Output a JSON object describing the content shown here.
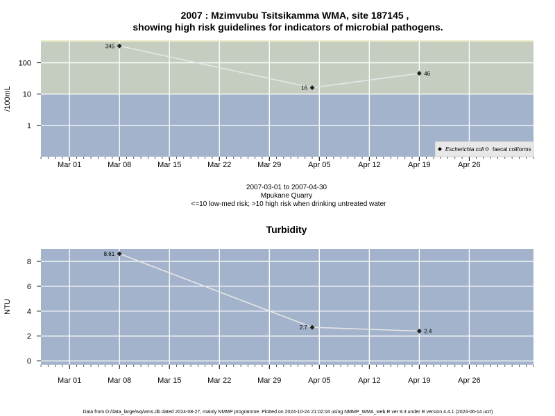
{
  "page": {
    "title_line1": "2007 : Mzimvubu Tsitsikamma WMA, site 187145 ,",
    "title_line2": "showing high risk guidelines for indicators of microbial pathogens.",
    "date_range": "2007-03-01 to 2007-04-30",
    "site_name": "Mpukane Quarry",
    "risk_note": "<=10 low-med risk; >10 high risk when drinking untreated water",
    "footer": "Data from D:/data_large/wq/wms.db dated 2024-08-27, mainly NMMP programme. Plotted on 2024-10-24 21:02:04 using NMMP_WMA_web.R ver 9.3 under R version 4.4.1 (2024-06-14 ucrt)"
  },
  "colors": {
    "high_risk_band": "#c5cdc0",
    "low_risk_band": "#a3b3cc",
    "top_strip": "#eeeec8",
    "grid": "#ffffff",
    "series_line": "#e6e6e6",
    "marker": "#222222",
    "legend_bg": "#e8e8e8"
  },
  "chart_data": [
    {
      "type": "line",
      "title": "",
      "ylabel": "/100mL",
      "yscale": "log",
      "ylim": [
        0.1,
        500
      ],
      "xlim": [
        "2007-02-25",
        "2007-05-05"
      ],
      "xticks": [
        {
          "date": "2007-03-01",
          "label": "Mar 01"
        },
        {
          "date": "2007-03-08",
          "label": "Mar 08"
        },
        {
          "date": "2007-03-15",
          "label": "Mar 15"
        },
        {
          "date": "2007-03-22",
          "label": "Mar 22"
        },
        {
          "date": "2007-03-29",
          "label": "Mar 29"
        },
        {
          "date": "2007-04-05",
          "label": "Apr 05"
        },
        {
          "date": "2007-04-12",
          "label": "Apr 12"
        },
        {
          "date": "2007-04-19",
          "label": "Apr 19"
        },
        {
          "date": "2007-04-26",
          "label": "Apr 26"
        }
      ],
      "yticks": [
        {
          "value": 1,
          "label": "1"
        },
        {
          "value": 10,
          "label": "10"
        },
        {
          "value": 100,
          "label": "100"
        }
      ],
      "threshold": 10,
      "grid": true,
      "legend": {
        "placement": "bottom-right",
        "entries": [
          {
            "label": "Escherichia coli",
            "italic": true,
            "marker": "filled-diamond"
          },
          {
            "label": "faecal coliforms",
            "italic": false,
            "marker": "open-diamond"
          }
        ]
      },
      "series": [
        {
          "name": "Escherichia coli",
          "points": [
            {
              "x": "2007-03-08",
              "y": 345,
              "label": "345",
              "label_side": "left"
            },
            {
              "x": "2007-04-04",
              "y": 16,
              "label": "16",
              "label_side": "left"
            },
            {
              "x": "2007-04-19",
              "y": 46,
              "label": "46",
              "label_side": "right"
            }
          ]
        }
      ]
    },
    {
      "type": "line",
      "title": "Turbidity",
      "ylabel": "NTU",
      "yscale": "linear",
      "ylim": [
        -0.3,
        9.0
      ],
      "xlim": [
        "2007-02-25",
        "2007-05-05"
      ],
      "xticks": [
        {
          "date": "2007-03-01",
          "label": "Mar 01"
        },
        {
          "date": "2007-03-08",
          "label": "Mar 08"
        },
        {
          "date": "2007-03-15",
          "label": "Mar 15"
        },
        {
          "date": "2007-03-22",
          "label": "Mar 22"
        },
        {
          "date": "2007-03-29",
          "label": "Mar 29"
        },
        {
          "date": "2007-04-05",
          "label": "Apr 05"
        },
        {
          "date": "2007-04-12",
          "label": "Apr 12"
        },
        {
          "date": "2007-04-19",
          "label": "Apr 19"
        },
        {
          "date": "2007-04-26",
          "label": "Apr 26"
        }
      ],
      "yticks": [
        {
          "value": 0,
          "label": "0"
        },
        {
          "value": 2,
          "label": "2"
        },
        {
          "value": 4,
          "label": "4"
        },
        {
          "value": 6,
          "label": "6"
        },
        {
          "value": 8,
          "label": "8"
        }
      ],
      "grid": true,
      "series": [
        {
          "name": "",
          "points": [
            {
              "x": "2007-03-08",
              "y": 8.61,
              "label": "8.61",
              "label_side": "left"
            },
            {
              "x": "2007-04-04",
              "y": 2.7,
              "label": "2.7",
              "label_side": "left"
            },
            {
              "x": "2007-04-19",
              "y": 2.4,
              "label": "2.4",
              "label_side": "right"
            }
          ]
        }
      ]
    }
  ]
}
